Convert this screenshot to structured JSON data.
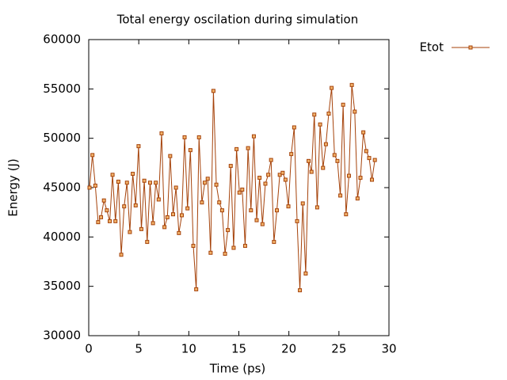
{
  "chart_data": {
    "type": "line",
    "title": "Total energy oscilation during simulation",
    "x_label": "Time (ps)",
    "y_label": "Energy (J)",
    "xlim": [
      0,
      30
    ],
    "xticks": [
      0,
      5,
      10,
      15,
      20,
      25,
      30
    ],
    "ylim": [
      30000,
      60000
    ],
    "yticks": [
      30000,
      35000,
      40000,
      45000,
      50000,
      55000,
      60000
    ],
    "legend_position": "outside-right",
    "x": [
      0.08,
      0.37,
      0.66,
      0.94,
      1.23,
      1.52,
      1.81,
      2.1,
      2.38,
      2.67,
      2.96,
      3.25,
      3.54,
      3.82,
      4.11,
      4.4,
      4.69,
      4.98,
      5.26,
      5.55,
      5.84,
      6.13,
      6.42,
      6.7,
      6.99,
      7.28,
      7.57,
      7.86,
      8.14,
      8.43,
      8.72,
      9.01,
      9.3,
      9.58,
      9.87,
      10.16,
      10.45,
      10.74,
      11.02,
      11.31,
      11.6,
      11.89,
      12.18,
      12.46,
      12.75,
      13.04,
      13.33,
      13.62,
      13.9,
      14.19,
      14.48,
      14.77,
      15.06,
      15.34,
      15.63,
      15.92,
      16.21,
      16.5,
      16.78,
      17.07,
      17.36,
      17.65,
      17.94,
      18.22,
      18.51,
      18.8,
      19.09,
      19.38,
      19.66,
      19.95,
      20.24,
      20.53,
      20.82,
      21.1,
      21.39,
      21.68,
      21.97,
      22.26,
      22.54,
      22.83,
      23.12,
      23.41,
      23.7,
      23.98,
      24.27,
      24.56,
      24.85,
      25.14,
      25.42,
      25.71,
      26.0,
      26.29,
      26.58,
      26.86,
      27.15,
      27.44,
      27.73,
      28.02,
      28.3,
      28.59
    ],
    "series": [
      {
        "name": "Etot",
        "color": "#a5420a",
        "values": [
          45000,
          48300,
          45200,
          41500,
          42000,
          43700,
          42700,
          41600,
          46300,
          41600,
          45600,
          38200,
          43100,
          45500,
          40500,
          46400,
          43200,
          49200,
          40800,
          45700,
          39500,
          45500,
          41400,
          45500,
          43800,
          50500,
          41000,
          42000,
          48200,
          42300,
          45000,
          40400,
          42200,
          50100,
          42900,
          48800,
          39100,
          34700,
          50100,
          43500,
          45500,
          45900,
          38400,
          54800,
          45300,
          43500,
          42700,
          38300,
          40700,
          47200,
          38900,
          48900,
          44500,
          44800,
          39100,
          49000,
          42700,
          50200,
          41700,
          46000,
          41300,
          45400,
          46300,
          47800,
          39500,
          42700,
          46300,
          46500,
          45800,
          43100,
          48400,
          51100,
          41600,
          34600,
          43400,
          36300,
          47700,
          46600,
          52400,
          43000,
          51400,
          47000,
          49400,
          52500,
          55100,
          48300,
          47700,
          44200,
          53400,
          42300,
          46200,
          55400,
          52700,
          43900,
          46000,
          50600,
          48700,
          48000,
          45800,
          47800
        ]
      }
    ]
  }
}
